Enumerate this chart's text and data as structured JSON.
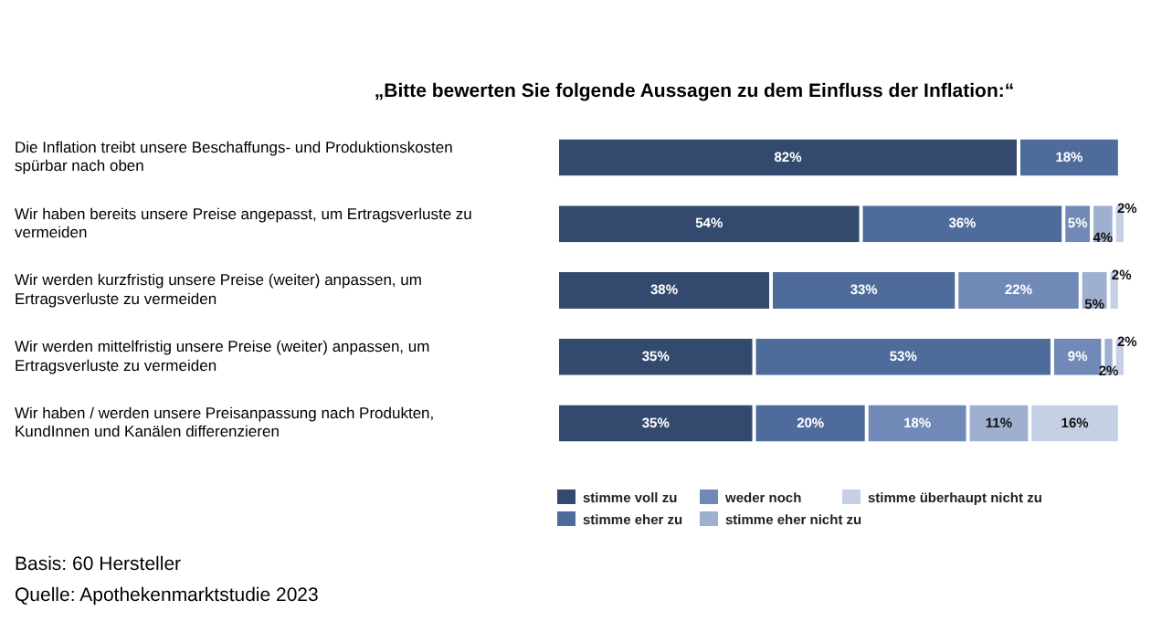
{
  "chart_data": {
    "type": "bar",
    "orientation": "horizontal",
    "stacked": true,
    "title": "„Bitte bewerten Sie folgende Aussagen zu dem Einfluss der Inflation:“",
    "categories": [
      "Die Inflation treibt unsere Beschaffungs- und Produktionskosten spürbar nach oben",
      "Wir haben bereits unsere Preise angepasst, um Ertragsverluste zu vermeiden",
      "Wir werden kurzfristig unsere Preise (weiter) anpassen, um Ertragsverluste zu vermeiden",
      "Wir werden mittelfristig unsere Preise (weiter) anpassen, um Ertragsverluste zu vermeiden",
      "Wir haben / werden unsere Preisanpassung nach Produkten, KundInnen und Kanälen differenzieren"
    ],
    "series": [
      {
        "name": "stimme voll zu",
        "color": "#34496e",
        "values": [
          82,
          54,
          38,
          35,
          35
        ],
        "value_labels": [
          "82%",
          "54%",
          "38%",
          "35%",
          "35%"
        ]
      },
      {
        "name": "stimme eher zu",
        "color": "#4e6b9c",
        "values": [
          18,
          36,
          33,
          53,
          20
        ],
        "value_labels": [
          "18%",
          "36%",
          "33%",
          "53%",
          "20%"
        ]
      },
      {
        "name": "weder noch",
        "color": "#7189b6",
        "values": [
          null,
          5,
          22,
          9,
          18
        ],
        "value_labels": [
          null,
          "5%",
          "22%",
          "9%",
          "18%"
        ]
      },
      {
        "name": "stimme eher nicht zu",
        "color": "#9eafd0",
        "values": [
          null,
          4,
          5,
          2,
          11
        ],
        "value_labels": [
          null,
          "4%",
          "5%",
          "2%",
          "11%"
        ]
      },
      {
        "name": "stimme überhaupt nicht zu",
        "color": "#c5d0e4",
        "values": [
          null,
          2,
          2,
          2,
          16
        ],
        "value_labels": [
          null,
          "2%",
          "2%",
          "2%",
          "16%"
        ]
      }
    ],
    "legend": "bottom",
    "grid": false,
    "tick_labels": "y",
    "annotations": [
      "Basis: 60 Hersteller",
      "Quelle: Apothekenmarktstudie 2023"
    ]
  }
}
